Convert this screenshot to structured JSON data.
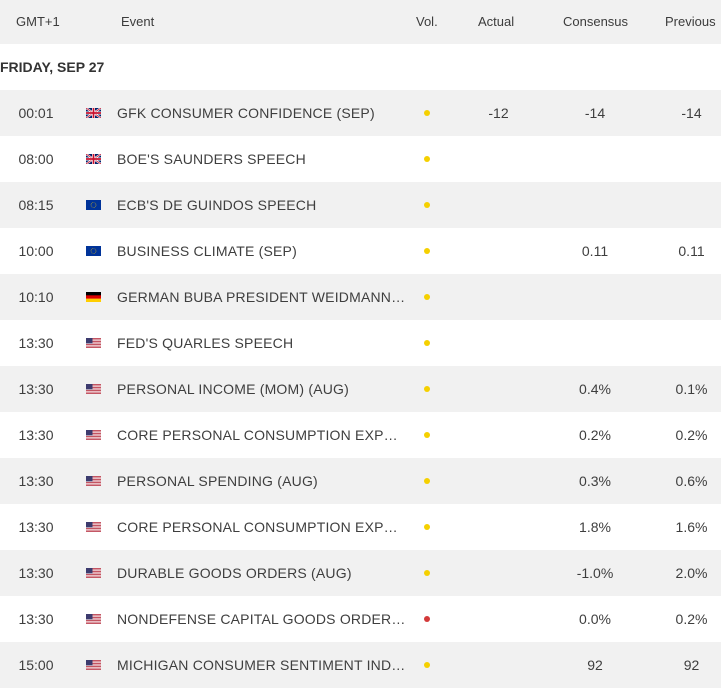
{
  "header": {
    "timezone": "GMT+1",
    "event": "Event",
    "volatility": "Vol.",
    "actual": "Actual",
    "consensus": "Consensus",
    "previous": "Previous"
  },
  "date_label": "FRIDAY, SEP 27",
  "colors": {
    "low_volatility": "#f5d000",
    "high_volatility": "#d33a3a"
  },
  "events": [
    {
      "time": "00:01",
      "flag": "uk-flag-icon",
      "name": "GFK CONSUMER CONFIDENCE (SEP)",
      "volatility": "low",
      "actual": "-12",
      "consensus": "-14",
      "previous": "-14"
    },
    {
      "time": "08:00",
      "flag": "uk-flag-icon",
      "name": "BOE'S SAUNDERS SPEECH",
      "volatility": "low",
      "actual": "",
      "consensus": "",
      "previous": ""
    },
    {
      "time": "08:15",
      "flag": "eu-flag-icon",
      "name": "ECB'S DE GUINDOS SPEECH",
      "volatility": "low",
      "actual": "",
      "consensus": "",
      "previous": ""
    },
    {
      "time": "10:00",
      "flag": "eu-flag-icon",
      "name": "BUSINESS CLIMATE (SEP)",
      "volatility": "low",
      "actual": "",
      "consensus": "0.11",
      "previous": "0.11"
    },
    {
      "time": "10:10",
      "flag": "de-flag-icon",
      "name": "GERMAN BUBA PRESIDENT WEIDMANN S...",
      "volatility": "low",
      "actual": "",
      "consensus": "",
      "previous": ""
    },
    {
      "time": "13:30",
      "flag": "us-flag-icon",
      "name": "FED'S QUARLES SPEECH",
      "volatility": "low",
      "actual": "",
      "consensus": "",
      "previous": ""
    },
    {
      "time": "13:30",
      "flag": "us-flag-icon",
      "name": "PERSONAL INCOME (MOM) (AUG)",
      "volatility": "low",
      "actual": "",
      "consensus": "0.4%",
      "previous": "0.1%"
    },
    {
      "time": "13:30",
      "flag": "us-flag-icon",
      "name": "CORE PERSONAL CONSUMPTION EXPEND...",
      "volatility": "low",
      "actual": "",
      "consensus": "0.2%",
      "previous": "0.2%"
    },
    {
      "time": "13:30",
      "flag": "us-flag-icon",
      "name": "PERSONAL SPENDING (AUG)",
      "volatility": "low",
      "actual": "",
      "consensus": "0.3%",
      "previous": "0.6%"
    },
    {
      "time": "13:30",
      "flag": "us-flag-icon",
      "name": "CORE PERSONAL CONSUMPTION EXPEND...",
      "volatility": "low",
      "actual": "",
      "consensus": "1.8%",
      "previous": "1.6%"
    },
    {
      "time": "13:30",
      "flag": "us-flag-icon",
      "name": "DURABLE GOODS ORDERS (AUG)",
      "volatility": "low",
      "actual": "",
      "consensus": "-1.0%",
      "previous": "2.0%"
    },
    {
      "time": "13:30",
      "flag": "us-flag-icon",
      "name": "NONDEFENSE CAPITAL GOODS ORDERS ...",
      "volatility": "high",
      "actual": "",
      "consensus": "0.0%",
      "previous": "0.2%"
    },
    {
      "time": "15:00",
      "flag": "us-flag-icon",
      "name": "MICHIGAN CONSUMER SENTIMENT INDEX...",
      "volatility": "low",
      "actual": "",
      "consensus": "92",
      "previous": "92"
    }
  ]
}
